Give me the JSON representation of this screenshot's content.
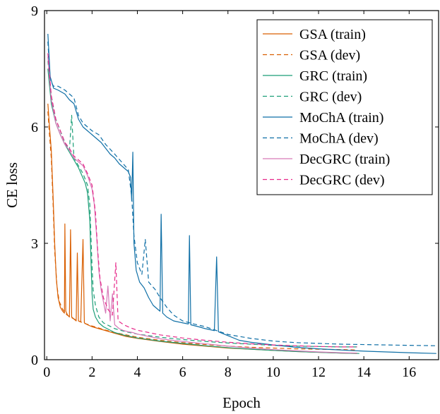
{
  "chart_data": {
    "type": "line",
    "title": "",
    "xlabel": "Epoch",
    "ylabel": "CE loss",
    "xlim": [
      -0.1,
      17.3
    ],
    "ylim": [
      0,
      9
    ],
    "xticks": [
      0,
      2,
      4,
      6,
      8,
      10,
      12,
      14,
      16
    ],
    "yticks": [
      0,
      3,
      6,
      9
    ],
    "grid": false,
    "legend_position": "top-right",
    "series": [
      {
        "name": "GSA (train)",
        "color": "#d95f02",
        "dash": "solid",
        "points": [
          [
            0.05,
            6.6
          ],
          [
            0.12,
            6.0
          ],
          [
            0.2,
            5.4
          ],
          [
            0.28,
            4.2
          ],
          [
            0.35,
            3.0
          ],
          [
            0.42,
            2.1
          ],
          [
            0.5,
            1.6
          ],
          [
            0.6,
            1.35
          ],
          [
            0.7,
            1.25
          ],
          [
            0.78,
            1.2
          ],
          [
            0.8,
            3.5
          ],
          [
            0.84,
            1.25
          ],
          [
            0.92,
            1.15
          ],
          [
            1.0,
            1.1
          ],
          [
            1.05,
            3.35
          ],
          [
            1.1,
            1.1
          ],
          [
            1.2,
            1.05
          ],
          [
            1.3,
            1.0
          ],
          [
            1.35,
            2.75
          ],
          [
            1.4,
            1.0
          ],
          [
            1.5,
            0.97
          ],
          [
            1.6,
            3.1
          ],
          [
            1.66,
            0.95
          ],
          [
            1.8,
            0.9
          ],
          [
            2.0,
            0.85
          ],
          [
            2.3,
            0.8
          ],
          [
            2.6,
            0.75
          ],
          [
            3.0,
            0.68
          ],
          [
            3.5,
            0.6
          ],
          [
            4.0,
            0.55
          ],
          [
            5.0,
            0.47
          ],
          [
            6.0,
            0.4
          ],
          [
            7.0,
            0.35
          ],
          [
            8.0,
            0.3
          ],
          [
            9.0,
            0.27
          ],
          [
            10.0,
            0.24
          ],
          [
            11.0,
            0.21
          ],
          [
            12.0,
            0.19
          ],
          [
            13.0,
            0.17
          ],
          [
            13.7,
            0.16
          ]
        ]
      },
      {
        "name": "GSA (dev)",
        "color": "#d95f02",
        "dash": "dashed",
        "points": [
          [
            0.05,
            6.4
          ],
          [
            0.12,
            5.8
          ],
          [
            0.2,
            5.2
          ],
          [
            0.28,
            4.0
          ],
          [
            0.35,
            2.8
          ],
          [
            0.45,
            1.9
          ],
          [
            0.55,
            1.5
          ],
          [
            0.7,
            1.3
          ],
          [
            0.9,
            1.15
          ],
          [
            1.2,
            1.05
          ],
          [
            1.6,
            0.95
          ],
          [
            2.0,
            0.87
          ],
          [
            2.5,
            0.78
          ],
          [
            3.0,
            0.7
          ],
          [
            4.0,
            0.58
          ],
          [
            5.0,
            0.5
          ],
          [
            6.0,
            0.44
          ],
          [
            7.0,
            0.39
          ],
          [
            8.0,
            0.35
          ],
          [
            9.0,
            0.32
          ],
          [
            10.0,
            0.3
          ],
          [
            11.0,
            0.28
          ],
          [
            12.0,
            0.27
          ],
          [
            13.0,
            0.26
          ],
          [
            13.7,
            0.25
          ]
        ]
      },
      {
        "name": "GRC (train)",
        "color": "#1b9e77",
        "dash": "solid",
        "points": [
          [
            0.05,
            7.5
          ],
          [
            0.2,
            6.6
          ],
          [
            0.4,
            6.1
          ],
          [
            0.6,
            5.8
          ],
          [
            0.8,
            5.55
          ],
          [
            1.0,
            5.35
          ],
          [
            1.2,
            5.15
          ],
          [
            1.4,
            4.95
          ],
          [
            1.55,
            4.75
          ],
          [
            1.7,
            4.55
          ],
          [
            1.8,
            4.3
          ],
          [
            1.9,
            3.6
          ],
          [
            1.95,
            2.6
          ],
          [
            2.0,
            1.7
          ],
          [
            2.05,
            1.3
          ],
          [
            2.15,
            1.1
          ],
          [
            2.3,
            0.95
          ],
          [
            2.5,
            0.85
          ],
          [
            3.0,
            0.7
          ],
          [
            3.5,
            0.62
          ],
          [
            4.0,
            0.56
          ],
          [
            5.0,
            0.48
          ],
          [
            6.0,
            0.42
          ],
          [
            7.0,
            0.36
          ],
          [
            8.0,
            0.31
          ],
          [
            9.0,
            0.27
          ],
          [
            10.0,
            0.24
          ],
          [
            11.0,
            0.21
          ],
          [
            12.0,
            0.19
          ],
          [
            13.0,
            0.17
          ],
          [
            13.8,
            0.16
          ]
        ]
      },
      {
        "name": "GRC (dev)",
        "color": "#1b9e77",
        "dash": "dashed",
        "points": [
          [
            0.05,
            7.7
          ],
          [
            0.2,
            6.8
          ],
          [
            0.4,
            6.2
          ],
          [
            0.6,
            5.9
          ],
          [
            0.8,
            5.6
          ],
          [
            1.0,
            5.4
          ],
          [
            1.1,
            6.3
          ],
          [
            1.2,
            5.2
          ],
          [
            1.4,
            5.0
          ],
          [
            1.6,
            4.8
          ],
          [
            1.8,
            4.5
          ],
          [
            1.9,
            4.0
          ],
          [
            1.95,
            3.2
          ],
          [
            2.0,
            2.4
          ],
          [
            2.05,
            1.8
          ],
          [
            2.15,
            1.4
          ],
          [
            2.3,
            1.1
          ],
          [
            2.5,
            0.95
          ],
          [
            3.0,
            0.8
          ],
          [
            3.5,
            0.72
          ],
          [
            4.0,
            0.66
          ],
          [
            5.0,
            0.58
          ],
          [
            6.0,
            0.52
          ],
          [
            7.0,
            0.47
          ],
          [
            8.0,
            0.43
          ],
          [
            9.0,
            0.4
          ],
          [
            10.0,
            0.37
          ],
          [
            11.0,
            0.35
          ],
          [
            12.0,
            0.34
          ],
          [
            13.0,
            0.33
          ],
          [
            13.8,
            0.33
          ]
        ]
      },
      {
        "name": "MoChA (train)",
        "color": "#0f6fa6",
        "dash": "solid",
        "points": [
          [
            0.05,
            8.4
          ],
          [
            0.15,
            7.3
          ],
          [
            0.3,
            7.0
          ],
          [
            0.5,
            6.95
          ],
          [
            0.8,
            6.85
          ],
          [
            1.0,
            6.7
          ],
          [
            1.2,
            6.6
          ],
          [
            1.4,
            6.2
          ],
          [
            1.6,
            6.0
          ],
          [
            1.8,
            5.9
          ],
          [
            2.0,
            5.8
          ],
          [
            2.2,
            5.7
          ],
          [
            2.4,
            5.6
          ],
          [
            2.6,
            5.45
          ],
          [
            2.8,
            5.3
          ],
          [
            3.0,
            5.2
          ],
          [
            3.2,
            5.05
          ],
          [
            3.4,
            4.95
          ],
          [
            3.6,
            4.85
          ],
          [
            3.7,
            4.7
          ],
          [
            3.75,
            4.1
          ],
          [
            3.8,
            5.35
          ],
          [
            3.85,
            3.0
          ],
          [
            3.95,
            2.3
          ],
          [
            4.1,
            2.0
          ],
          [
            4.3,
            1.85
          ],
          [
            4.5,
            1.6
          ],
          [
            4.7,
            1.4
          ],
          [
            4.9,
            1.3
          ],
          [
            5.0,
            1.25
          ],
          [
            5.05,
            3.75
          ],
          [
            5.12,
            1.2
          ],
          [
            5.3,
            1.1
          ],
          [
            5.6,
            1.0
          ],
          [
            6.0,
            0.95
          ],
          [
            6.25,
            0.92
          ],
          [
            6.3,
            3.2
          ],
          [
            6.36,
            0.9
          ],
          [
            6.7,
            0.85
          ],
          [
            7.0,
            0.8
          ],
          [
            7.4,
            0.75
          ],
          [
            7.5,
            2.65
          ],
          [
            7.58,
            0.72
          ],
          [
            8.0,
            0.62
          ],
          [
            8.5,
            0.5
          ],
          [
            9.0,
            0.45
          ],
          [
            10.0,
            0.38
          ],
          [
            11.0,
            0.32
          ],
          [
            12.0,
            0.28
          ],
          [
            13.0,
            0.25
          ],
          [
            14.0,
            0.22
          ],
          [
            15.0,
            0.2
          ],
          [
            16.0,
            0.18
          ],
          [
            17.2,
            0.16
          ]
        ]
      },
      {
        "name": "MoChA (dev)",
        "color": "#0f6fa6",
        "dash": "dashed",
        "points": [
          [
            0.05,
            8.2
          ],
          [
            0.15,
            7.2
          ],
          [
            0.3,
            7.05
          ],
          [
            0.5,
            7.05
          ],
          [
            0.8,
            6.95
          ],
          [
            1.0,
            6.85
          ],
          [
            1.2,
            6.75
          ],
          [
            1.4,
            6.3
          ],
          [
            1.6,
            6.1
          ],
          [
            1.8,
            6.0
          ],
          [
            2.0,
            5.9
          ],
          [
            2.3,
            5.8
          ],
          [
            2.6,
            5.55
          ],
          [
            3.0,
            5.3
          ],
          [
            3.3,
            5.1
          ],
          [
            3.6,
            4.9
          ],
          [
            3.75,
            4.2
          ],
          [
            3.85,
            3.2
          ],
          [
            4.0,
            2.5
          ],
          [
            4.2,
            2.2
          ],
          [
            4.35,
            3.1
          ],
          [
            4.5,
            2.0
          ],
          [
            4.8,
            1.8
          ],
          [
            5.0,
            1.6
          ],
          [
            5.3,
            1.35
          ],
          [
            5.6,
            1.15
          ],
          [
            6.0,
            1.0
          ],
          [
            6.5,
            0.92
          ],
          [
            7.0,
            0.85
          ],
          [
            7.5,
            0.75
          ],
          [
            8.0,
            0.65
          ],
          [
            9.0,
            0.55
          ],
          [
            10.0,
            0.48
          ],
          [
            11.0,
            0.44
          ],
          [
            12.0,
            0.42
          ],
          [
            13.0,
            0.4
          ],
          [
            14.0,
            0.39
          ],
          [
            15.0,
            0.38
          ],
          [
            16.0,
            0.37
          ],
          [
            17.2,
            0.36
          ]
        ]
      },
      {
        "name": "DecGRC (train)",
        "color": "#d67ab8",
        "dash": "solid",
        "points": [
          [
            0.05,
            7.8
          ],
          [
            0.2,
            6.7
          ],
          [
            0.4,
            6.1
          ],
          [
            0.6,
            5.8
          ],
          [
            0.8,
            5.55
          ],
          [
            1.0,
            5.4
          ],
          [
            1.2,
            5.2
          ],
          [
            1.4,
            5.1
          ],
          [
            1.6,
            5.0
          ],
          [
            1.8,
            4.75
          ],
          [
            2.0,
            4.4
          ],
          [
            2.1,
            4.0
          ],
          [
            2.2,
            3.2
          ],
          [
            2.3,
            2.3
          ],
          [
            2.4,
            1.8
          ],
          [
            2.5,
            1.5
          ],
          [
            2.6,
            1.2
          ],
          [
            2.7,
            1.9
          ],
          [
            2.8,
            1.0
          ],
          [
            2.9,
            1.7
          ],
          [
            3.0,
            0.9
          ],
          [
            3.2,
            0.8
          ],
          [
            3.4,
            0.75
          ],
          [
            3.6,
            0.72
          ],
          [
            3.8,
            0.7
          ],
          [
            4.0,
            0.66
          ],
          [
            4.5,
            0.6
          ],
          [
            5.0,
            0.54
          ],
          [
            6.0,
            0.47
          ],
          [
            7.0,
            0.41
          ],
          [
            8.0,
            0.35
          ],
          [
            9.0,
            0.3
          ],
          [
            10.0,
            0.26
          ],
          [
            11.0,
            0.23
          ],
          [
            12.0,
            0.2
          ],
          [
            13.0,
            0.18
          ],
          [
            13.7,
            0.17
          ]
        ]
      },
      {
        "name": "DecGRC (dev)",
        "color": "#e7298a",
        "dash": "dashed",
        "points": [
          [
            0.05,
            7.9
          ],
          [
            0.2,
            6.8
          ],
          [
            0.4,
            6.2
          ],
          [
            0.6,
            5.9
          ],
          [
            0.8,
            5.6
          ],
          [
            1.0,
            5.45
          ],
          [
            1.2,
            5.25
          ],
          [
            1.4,
            5.15
          ],
          [
            1.6,
            5.05
          ],
          [
            1.8,
            4.8
          ],
          [
            2.0,
            4.5
          ],
          [
            2.15,
            3.8
          ],
          [
            2.25,
            2.8
          ],
          [
            2.35,
            2.1
          ],
          [
            2.5,
            1.6
          ],
          [
            2.7,
            1.3
          ],
          [
            2.9,
            1.15
          ],
          [
            3.05,
            2.5
          ],
          [
            3.15,
            1.0
          ],
          [
            3.4,
            0.9
          ],
          [
            3.7,
            0.82
          ],
          [
            4.0,
            0.76
          ],
          [
            4.5,
            0.7
          ],
          [
            5.0,
            0.64
          ],
          [
            6.0,
            0.56
          ],
          [
            7.0,
            0.5
          ],
          [
            8.0,
            0.45
          ],
          [
            9.0,
            0.41
          ],
          [
            10.0,
            0.38
          ],
          [
            11.0,
            0.36
          ],
          [
            12.0,
            0.34
          ],
          [
            13.0,
            0.33
          ],
          [
            13.7,
            0.33
          ]
        ]
      }
    ]
  }
}
